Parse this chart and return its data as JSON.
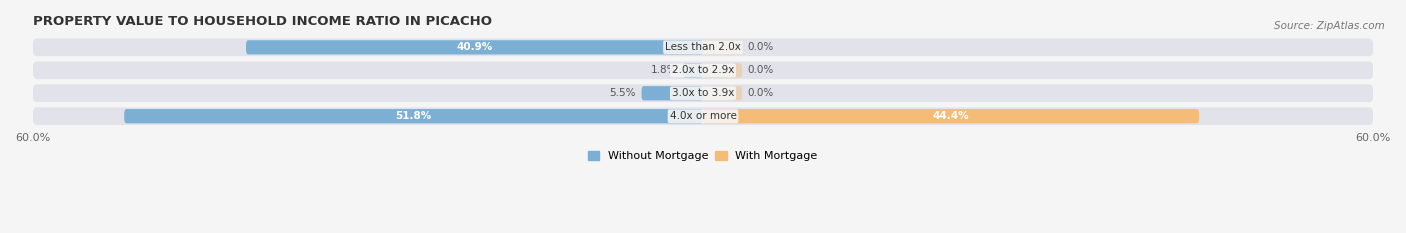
{
  "title": "PROPERTY VALUE TO HOUSEHOLD INCOME RATIO IN PICACHO",
  "source": "Source: ZipAtlas.com",
  "categories": [
    "Less than 2.0x",
    "2.0x to 2.9x",
    "3.0x to 3.9x",
    "4.0x or more"
  ],
  "without_mortgage": [
    40.9,
    1.8,
    5.5,
    51.8
  ],
  "with_mortgage": [
    0.0,
    0.0,
    0.0,
    44.4
  ],
  "xlim": [
    -60,
    60
  ],
  "xticks": [
    -60,
    60
  ],
  "xticklabels": [
    "60.0%",
    "60.0%"
  ],
  "color_without": "#7BAFD4",
  "color_with": "#F5BC78",
  "bar_height": 0.62,
  "background_color": "#F5F5F5",
  "bar_background": "#E2E2EA",
  "title_fontsize": 9.5,
  "source_fontsize": 7.5,
  "label_fontsize": 7.5,
  "tick_fontsize": 8,
  "legend_fontsize": 8,
  "row_order": [
    3,
    2,
    1,
    0
  ]
}
